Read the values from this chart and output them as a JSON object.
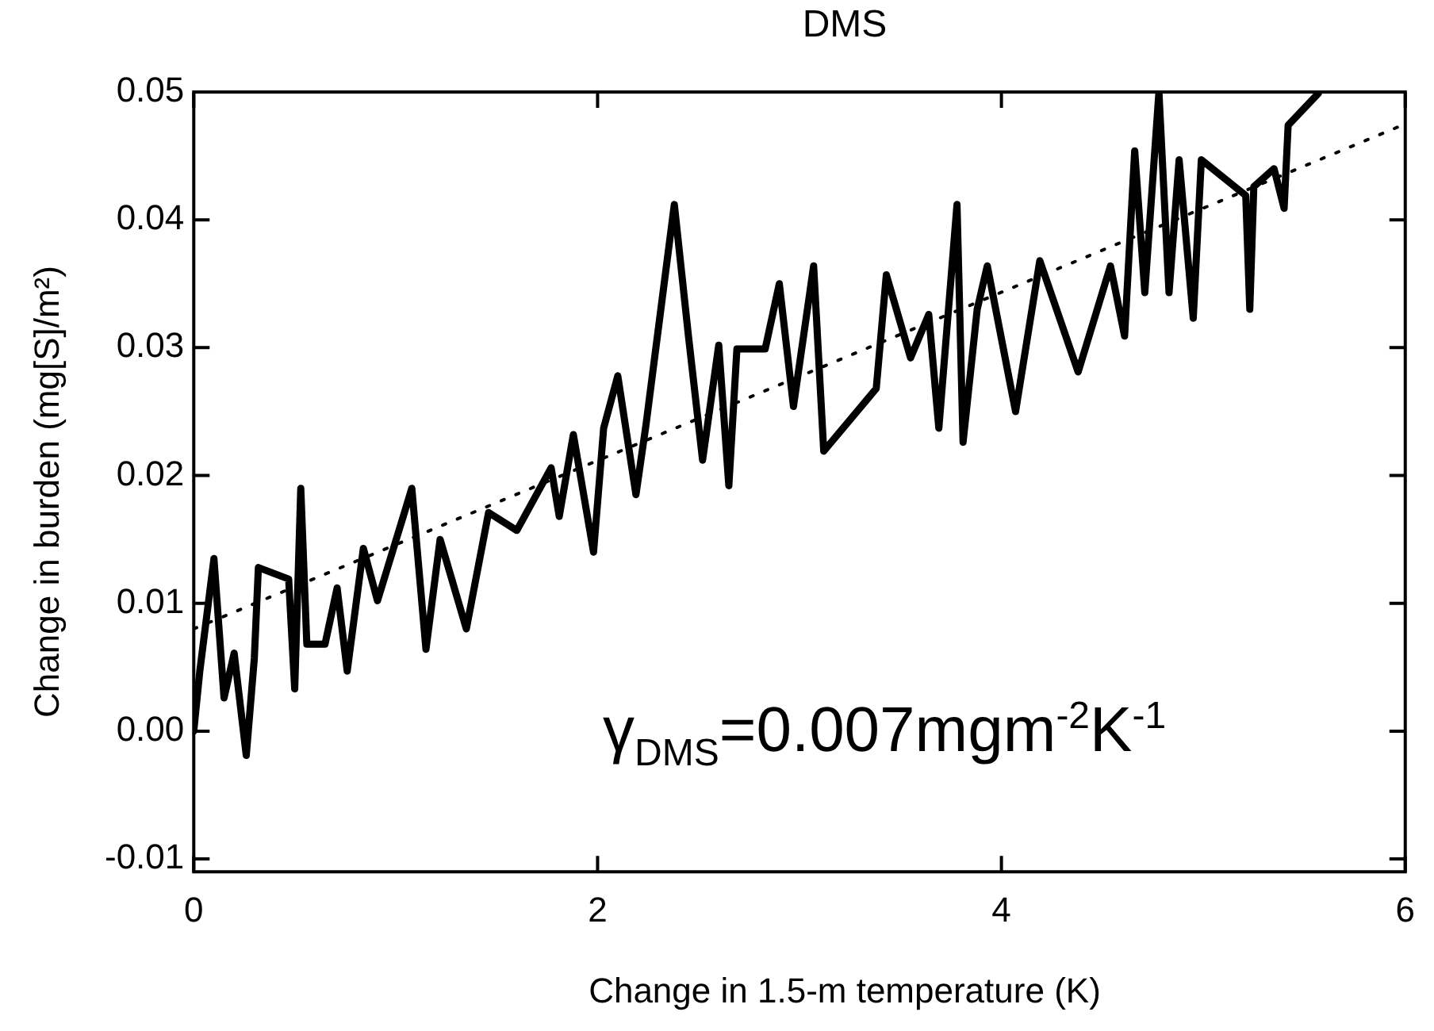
{
  "chart_data": {
    "type": "line",
    "title": "DMS",
    "xlabel": "Change in 1.5-m temperature (K)",
    "ylabel": "Change in burden (mg[S]/m²)",
    "annotations": [
      "γ$_{DMS}$=0.007mgm$^{-2}$K$^{-1}$"
    ],
    "xlim": [
      0,
      6
    ],
    "xticks": [
      0,
      2,
      4,
      6
    ],
    "ylim": [
      -0.011,
      0.05
    ],
    "yticks": [
      -0.01,
      {
        "value": 0,
        "label": "0.00"
      },
      0.01,
      0.02,
      0.03,
      0.04,
      0.05
    ],
    "grid": false,
    "legend": false,
    "marker": "none",
    "series": [
      {
        "color": "#000000",
        "line_style": "solid",
        "x": [
          0,
          0.03,
          0.1,
          0.15,
          0.2,
          0.26,
          0.3,
          0.32,
          0.47,
          0.5,
          0.53,
          0.56,
          0.65,
          0.71,
          0.76,
          0.84,
          0.91,
          1.08,
          1.15,
          1.22,
          1.35,
          1.46,
          1.6,
          1.77,
          1.81,
          1.88,
          1.98,
          2.03,
          2.1,
          2.19,
          2.24,
          2.38,
          2.45,
          2.52,
          2.6,
          2.65,
          2.69,
          2.83,
          2.9,
          2.97,
          3.07,
          3.12,
          3.38,
          3.43,
          3.55,
          3.64,
          3.69,
          3.78,
          3.81,
          3.88,
          3.93,
          4.07,
          4.19,
          4.38,
          4.54,
          4.61,
          4.66,
          4.71,
          4.78,
          4.83,
          4.88,
          4.95,
          4.99,
          5.21,
          5.23,
          5.25,
          5.35,
          5.4,
          5.42,
          5.57
        ],
        "values": [
          0.0,
          0.0047,
          0.0135,
          0.0026,
          0.0061,
          -0.0019,
          0.0057,
          0.0128,
          0.0119,
          0.0033,
          0.019,
          0.0068,
          0.0068,
          0.0112,
          0.0047,
          0.0143,
          0.0102,
          0.019,
          0.0064,
          0.015,
          0.008,
          0.0171,
          0.0157,
          0.0206,
          0.0168,
          0.0232,
          0.014,
          0.0237,
          0.0278,
          0.0185,
          0.024,
          0.0412,
          0.0309,
          0.0212,
          0.0302,
          0.0192,
          0.0299,
          0.0299,
          0.035,
          0.0254,
          0.0364,
          0.0219,
          0.0268,
          0.0357,
          0.0292,
          0.0326,
          0.0237,
          0.0412,
          0.0226,
          0.033,
          0.0364,
          0.025,
          0.0368,
          0.0281,
          0.0364,
          0.0309,
          0.0454,
          0.0343,
          0.05,
          0.0343,
          0.0447,
          0.0323,
          0.0447,
          0.0419,
          0.033,
          0.0426,
          0.044,
          0.0409,
          0.0474,
          0.0499
        ]
      },
      {
        "color": "#000000",
        "line_style": "dotted",
        "x": [
          0,
          6
        ],
        "values": [
          0.008,
          0.0475
        ]
      }
    ]
  }
}
